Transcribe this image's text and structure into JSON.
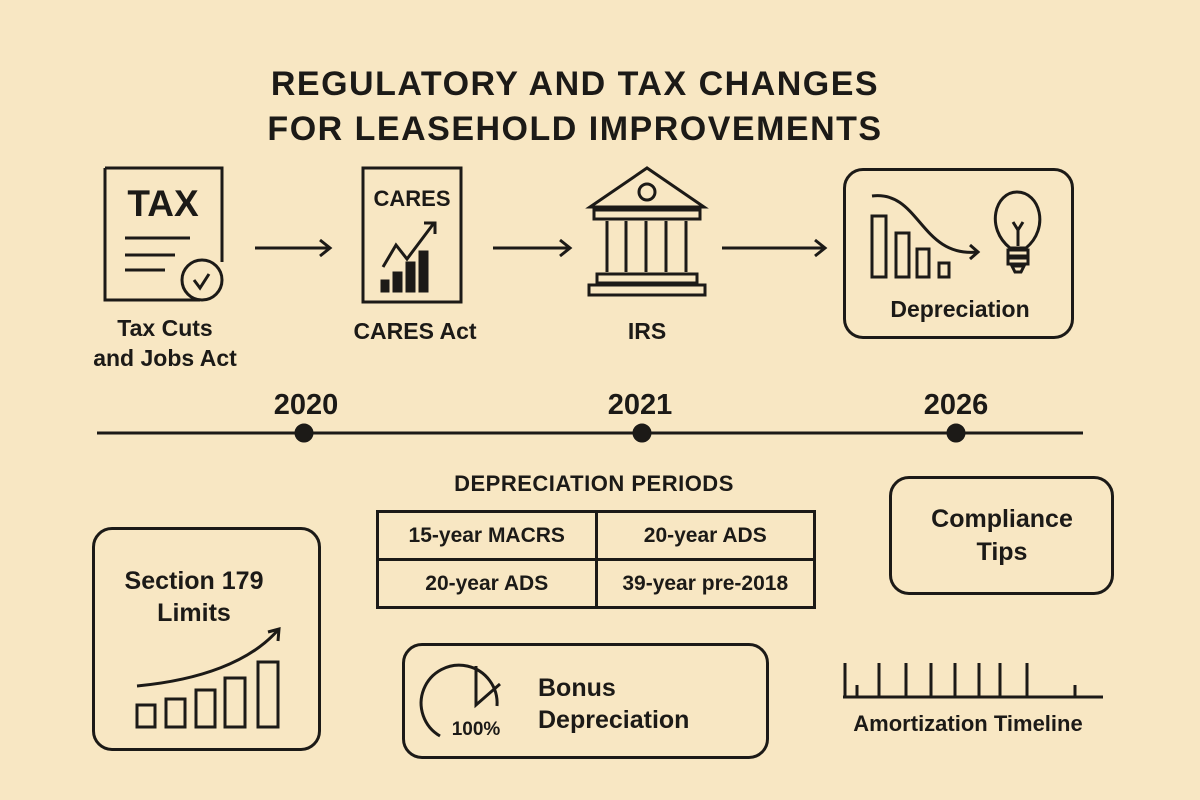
{
  "title": {
    "line1": "REGULATORY AND TAX CHANGES",
    "line2": "FOR LEASEHOLD IMPROVEMENTS"
  },
  "flow": [
    {
      "icon": "tax-document-icon",
      "icon_text": "TAX",
      "label_line1": "Tax Cuts",
      "label_line2": "and Jobs Act"
    },
    {
      "icon": "cares-document-icon",
      "icon_text": "CARES",
      "label": "CARES Act"
    },
    {
      "icon": "bank-building-icon",
      "label": "IRS"
    },
    {
      "icon": "depreciation-chart-lightbulb-icon",
      "label": "Depreciation"
    }
  ],
  "timeline": {
    "years": [
      "2020",
      "2021",
      "2026"
    ]
  },
  "depreciation_periods": {
    "heading": "DEPRECIATION PERIODS",
    "rows": [
      [
        "15-year MACRS",
        "20-year ADS"
      ],
      [
        "20-year ADS",
        "39-year pre-2018"
      ]
    ]
  },
  "section179": {
    "line1": "Section 179",
    "line2": "Limits",
    "icon": "rising-bar-chart-icon"
  },
  "compliance": {
    "line1": "Compliance",
    "line2": "Tips"
  },
  "bonus": {
    "line1": "Bonus",
    "line2": "Depreciation",
    "pie_label": "100%",
    "icon": "pie-chart-icon"
  },
  "amortization": {
    "label": "Amortization Timeline",
    "icon": "timeline-ticks-icon"
  },
  "colors": {
    "background": "#f8e7c3",
    "ink": "#1c1a17"
  }
}
